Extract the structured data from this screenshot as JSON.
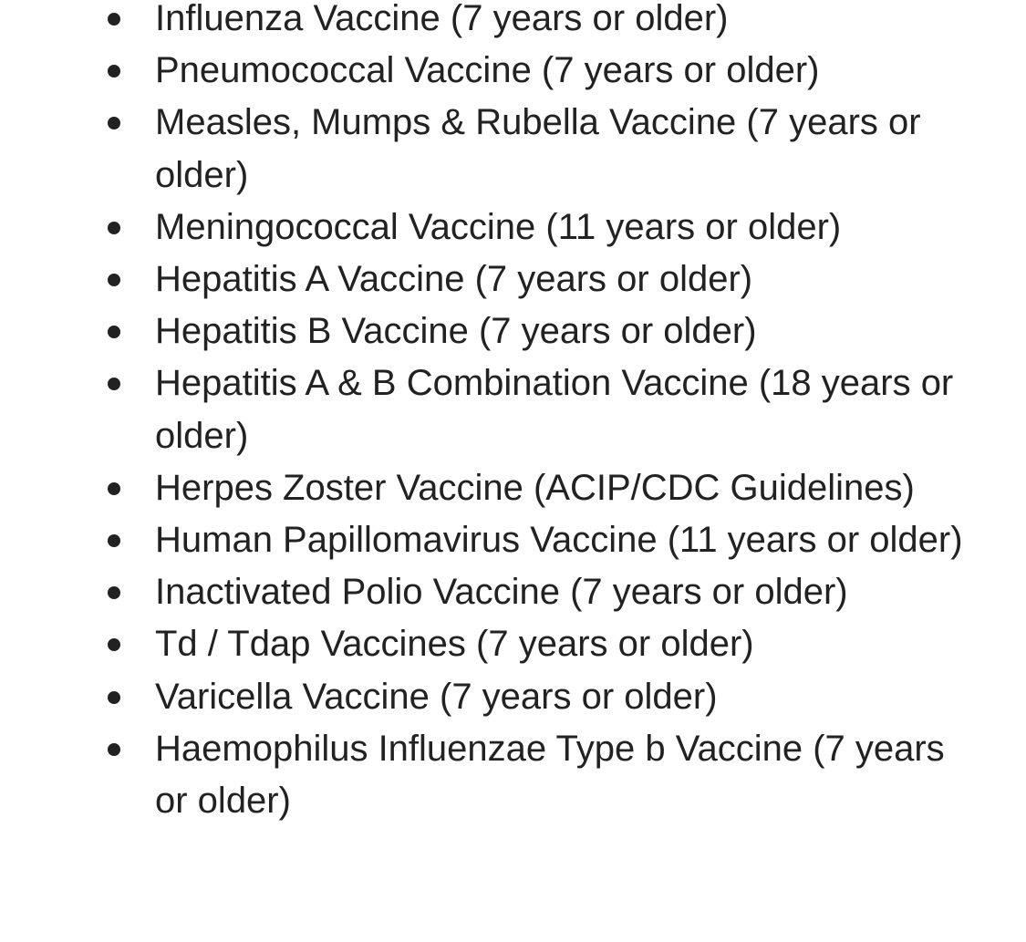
{
  "vaccine_list": {
    "items": [
      "Influenza Vaccine (7 years or older)",
      "Pneumococcal Vaccine (7 years or older)",
      "Measles, Mumps & Rubella Vaccine (7 years or older)",
      "Meningococcal Vaccine (11 years or older)",
      "Hepatitis A Vaccine (7 years or older)",
      "Hepatitis B Vaccine (7 years or older)",
      "Hepatitis A & B Combination Vaccine (18 years or older)",
      "Herpes Zoster Vaccine (ACIP/CDC Guidelines)",
      "Human Papillomavirus Vaccine (11 years or older)",
      "Inactivated Polio Vaccine (7 years or older)",
      "Td / Tdap Vaccines (7 years or older)",
      "Varicella Vaccine (7 years or older)",
      "Haemophilus Influenzae Type b Vaccine (7 years or older)"
    ]
  }
}
